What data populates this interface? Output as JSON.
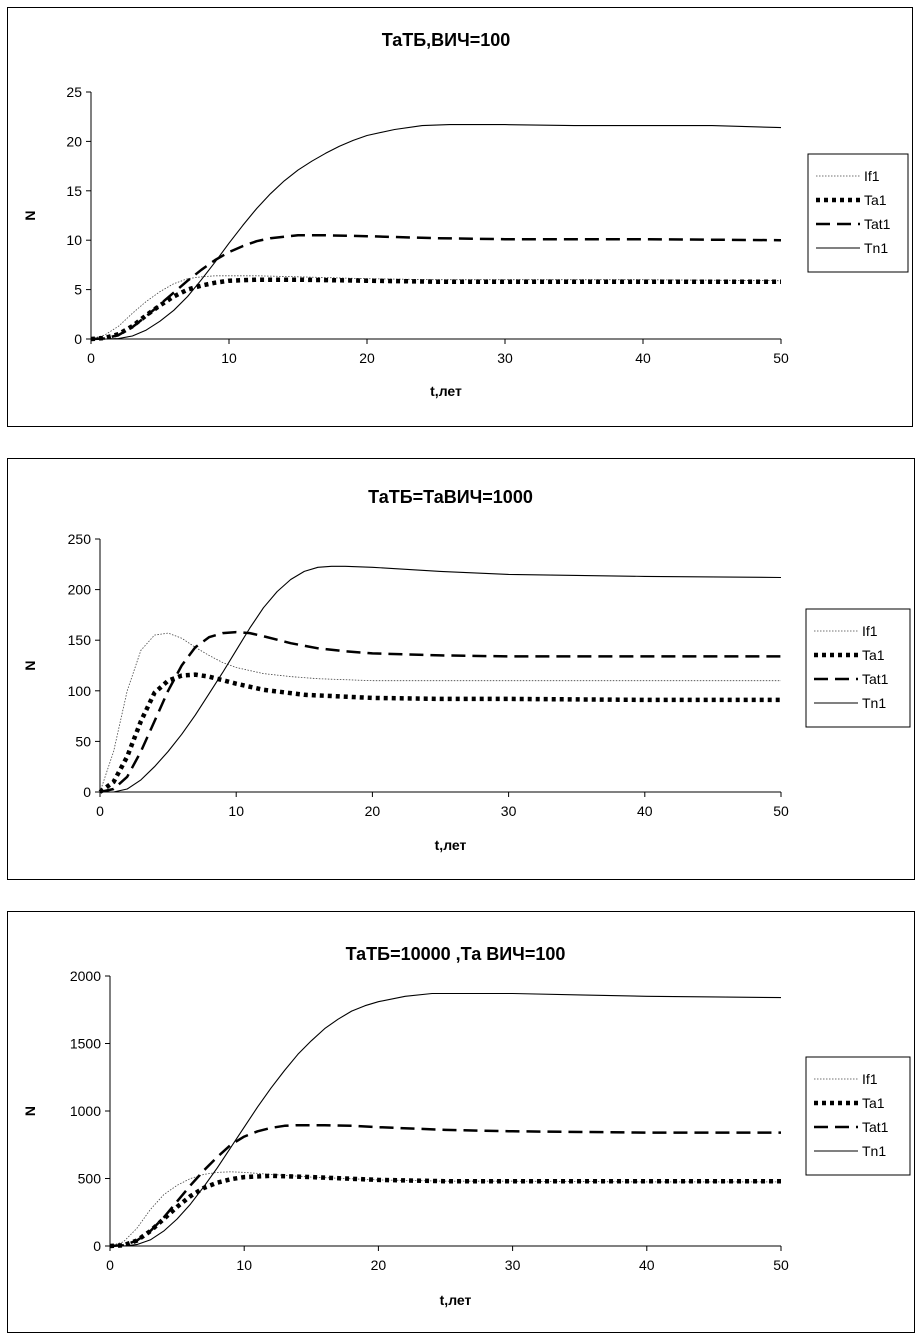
{
  "chart_data": [
    {
      "type": "line",
      "title": "ТаТБ,ВИЧ=100",
      "xlabel": "t,лет",
      "ylabel": "N",
      "xlim": [
        0,
        50
      ],
      "ylim": [
        0,
        25
      ],
      "xticks": [
        "0",
        "10",
        "20",
        "30",
        "40",
        "50"
      ],
      "yticks": [
        "0",
        "5",
        "10",
        "15",
        "20",
        "25"
      ],
      "legend_position": "right",
      "series": [
        {
          "name": "If1",
          "style": "dotted-thin",
          "x": [
            0,
            1,
            2,
            3,
            4,
            5,
            6,
            7,
            8,
            9,
            10,
            12,
            15,
            20,
            25,
            30,
            40,
            50
          ],
          "y": [
            0,
            0.4,
            1.3,
            2.6,
            3.8,
            4.8,
            5.6,
            6.1,
            6.3,
            6.4,
            6.4,
            6.4,
            6.3,
            6.1,
            6,
            6,
            6,
            5.9
          ]
        },
        {
          "name": "Ta1",
          "style": "dotted-thick",
          "x": [
            0,
            1,
            2,
            3,
            4,
            5,
            6,
            7,
            8,
            9,
            10,
            12,
            15,
            20,
            25,
            30,
            40,
            50
          ],
          "y": [
            0,
            0.1,
            0.5,
            1.3,
            2.4,
            3.4,
            4.3,
            5,
            5.4,
            5.7,
            5.9,
            6,
            6,
            5.9,
            5.8,
            5.8,
            5.8,
            5.8
          ]
        },
        {
          "name": "Tat1",
          "style": "dashed",
          "x": [
            0,
            1,
            2,
            3,
            4,
            5,
            6,
            7,
            8,
            9,
            10,
            11,
            12,
            13,
            15,
            17,
            20,
            25,
            30,
            40,
            50
          ],
          "y": [
            0,
            0.05,
            0.4,
            1.2,
            2.3,
            3.5,
            4.7,
            5.9,
            7,
            8,
            8.8,
            9.4,
            9.9,
            10.2,
            10.5,
            10.5,
            10.4,
            10.2,
            10.1,
            10.1,
            10
          ]
        },
        {
          "name": "Tn1",
          "style": "solid",
          "x": [
            0,
            1,
            2,
            3,
            4,
            5,
            6,
            7,
            8,
            9,
            10,
            11,
            12,
            13,
            14,
            15,
            16,
            17,
            18,
            19,
            20,
            22,
            24,
            26,
            30,
            35,
            40,
            45,
            50
          ],
          "y": [
            0,
            0,
            0.05,
            0.3,
            0.9,
            1.8,
            2.9,
            4.3,
            6,
            7.8,
            9.7,
            11.5,
            13.2,
            14.7,
            16,
            17.1,
            18,
            18.8,
            19.5,
            20.1,
            20.6,
            21.2,
            21.6,
            21.7,
            21.7,
            21.6,
            21.6,
            21.6,
            21.4
          ]
        }
      ]
    },
    {
      "type": "line",
      "title": "ТаТБ=ТаВИЧ=1000",
      "xlabel": "t,лет",
      "ylabel": "N",
      "xlim": [
        0,
        50
      ],
      "ylim": [
        0,
        250
      ],
      "xticks": [
        "0",
        "10",
        "20",
        "30",
        "40",
        "50"
      ],
      "yticks": [
        "0",
        "50",
        "100",
        "150",
        "200",
        "250"
      ],
      "legend_position": "right",
      "series": [
        {
          "name": "If1",
          "style": "dotted-thin",
          "x": [
            0,
            1,
            2,
            3,
            4,
            5,
            6,
            7,
            8,
            9,
            10,
            12,
            14,
            16,
            18,
            20,
            25,
            30,
            40,
            50
          ],
          "y": [
            0,
            40,
            100,
            140,
            155,
            157,
            152,
            143,
            135,
            128,
            123,
            117,
            114,
            112,
            111,
            110,
            110,
            110,
            110,
            110
          ]
        },
        {
          "name": "Ta1",
          "style": "dotted-thick",
          "x": [
            0,
            1,
            2,
            3,
            4,
            5,
            6,
            7,
            8,
            10,
            12,
            15,
            20,
            25,
            30,
            40,
            50
          ],
          "y": [
            0,
            10,
            35,
            70,
            98,
            110,
            115,
            116,
            114,
            107,
            101,
            96,
            93,
            92,
            92,
            91,
            91
          ]
        },
        {
          "name": "Tat1",
          "style": "dashed",
          "x": [
            0,
            1,
            2,
            3,
            4,
            5,
            6,
            7,
            8,
            9,
            10,
            11,
            12,
            14,
            16,
            18,
            20,
            25,
            30,
            40,
            50
          ],
          "y": [
            0,
            3,
            15,
            40,
            70,
            100,
            125,
            143,
            153,
            157,
            158,
            157,
            154,
            147,
            142,
            139,
            137,
            135,
            134,
            134,
            134
          ]
        },
        {
          "name": "Tn1",
          "style": "solid",
          "x": [
            0,
            1,
            2,
            3,
            4,
            5,
            6,
            7,
            8,
            9,
            10,
            11,
            12,
            13,
            14,
            15,
            16,
            17,
            18,
            20,
            25,
            30,
            40,
            50
          ],
          "y": [
            0,
            0,
            3,
            12,
            25,
            40,
            57,
            76,
            97,
            118,
            140,
            162,
            182,
            198,
            210,
            218,
            222,
            223,
            223,
            222,
            218,
            215,
            213,
            212
          ]
        }
      ]
    },
    {
      "type": "line",
      "title": "ТаТБ=10000 ,Та ВИЧ=100",
      "xlabel": "t,лет",
      "ylabel": "N",
      "xlim": [
        0,
        50
      ],
      "ylim": [
        0,
        2000
      ],
      "xticks": [
        "0",
        "10",
        "20",
        "30",
        "40",
        "50"
      ],
      "yticks": [
        "0",
        "500",
        "1000",
        "1500",
        "2000"
      ],
      "legend_position": "right",
      "series": [
        {
          "name": "If1",
          "style": "dotted-thin",
          "x": [
            0,
            1,
            2,
            3,
            4,
            5,
            6,
            7,
            8,
            9,
            10,
            12,
            15,
            20,
            25,
            30,
            40,
            50
          ],
          "y": [
            0,
            30,
            130,
            270,
            380,
            450,
            500,
            530,
            545,
            550,
            545,
            530,
            510,
            490,
            480,
            480,
            475,
            475
          ]
        },
        {
          "name": "Ta1",
          "style": "dotted-thick",
          "x": [
            0,
            1,
            2,
            3,
            4,
            5,
            6,
            7,
            8,
            9,
            10,
            12,
            15,
            20,
            25,
            30,
            40,
            50
          ],
          "y": [
            0,
            5,
            40,
            110,
            200,
            290,
            370,
            430,
            470,
            495,
            510,
            520,
            510,
            490,
            480,
            480,
            480,
            480
          ]
        },
        {
          "name": "Tat1",
          "style": "dashed",
          "x": [
            0,
            1,
            2,
            3,
            4,
            5,
            6,
            7,
            8,
            9,
            10,
            11,
            12,
            13,
            14,
            16,
            18,
            20,
            25,
            30,
            40,
            50
          ],
          "y": [
            0,
            5,
            40,
            110,
            210,
            330,
            450,
            560,
            660,
            750,
            810,
            850,
            875,
            890,
            895,
            895,
            890,
            880,
            860,
            850,
            840,
            840
          ]
        },
        {
          "name": "Tn1",
          "style": "solid",
          "x": [
            0,
            1,
            2,
            3,
            4,
            5,
            6,
            7,
            8,
            9,
            10,
            11,
            12,
            13,
            14,
            15,
            16,
            17,
            18,
            19,
            20,
            22,
            24,
            26,
            30,
            35,
            40,
            45,
            50
          ],
          "y": [
            0,
            0,
            10,
            45,
            110,
            200,
            310,
            440,
            580,
            730,
            880,
            1030,
            1170,
            1300,
            1420,
            1520,
            1610,
            1680,
            1740,
            1780,
            1810,
            1850,
            1870,
            1870,
            1870,
            1860,
            1850,
            1845,
            1840
          ]
        }
      ]
    }
  ]
}
